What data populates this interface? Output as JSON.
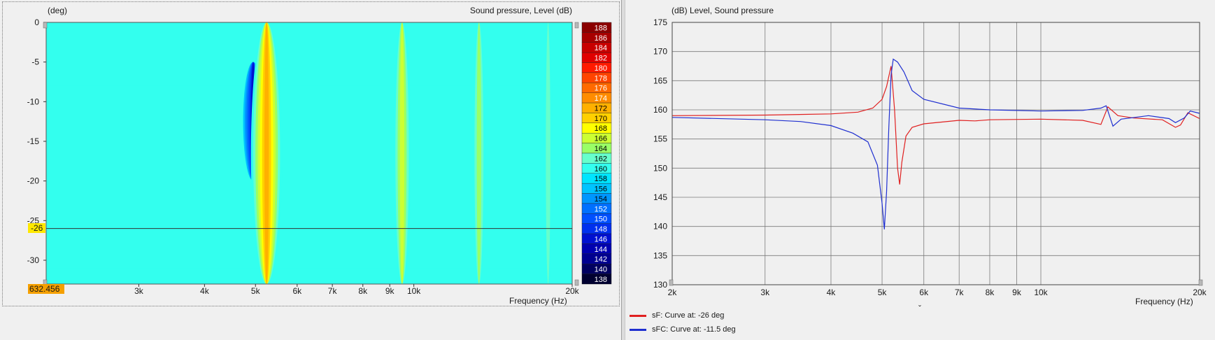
{
  "colors": {
    "series_sF": "#e02020",
    "series_sFC": "#1f2fd0",
    "cursor_bg": "#ffe800",
    "readout_bg": "#f5a000"
  },
  "left": {
    "y_unit": "(deg)",
    "z_title": "Sound pressure, Level  (dB)",
    "x_title": "Frequency  (Hz)",
    "cursor_label": "-26",
    "readout": "632.456"
  },
  "right": {
    "y_title": "(dB)  Level, Sound pressure",
    "x_title": "Frequency  (Hz)",
    "marker": "ˇ"
  },
  "legend": [
    {
      "label": "sF: Curve at: -26 deg",
      "color": "#e02020"
    },
    {
      "label": "sFC: Curve at: -11.5 deg",
      "color": "#1f2fd0"
    }
  ],
  "chart_data": [
    {
      "type": "heatmap",
      "title": "Sound pressure, Level  (dB)",
      "ylabel": "(deg)",
      "xlabel": "Frequency  (Hz)",
      "x_scale": "log",
      "xlim": [
        2000,
        20000
      ],
      "ylim": [
        -33,
        0
      ],
      "x_ticks": [
        {
          "v": 2000,
          "label": "2k"
        },
        {
          "v": 3000,
          "label": "3k"
        },
        {
          "v": 4000,
          "label": "4k"
        },
        {
          "v": 5000,
          "label": "5k"
        },
        {
          "v": 6000,
          "label": "6k"
        },
        {
          "v": 7000,
          "label": "7k"
        },
        {
          "v": 8000,
          "label": "8k"
        },
        {
          "v": 9000,
          "label": "9k"
        },
        {
          "v": 10000,
          "label": "10k"
        },
        {
          "v": 20000,
          "label": "20k"
        }
      ],
      "y_ticks": [
        0,
        -5,
        -10,
        -15,
        -20,
        -25,
        -30
      ],
      "cursor_y": -26,
      "colorbar": [
        188,
        186,
        184,
        182,
        180,
        178,
        176,
        174,
        172,
        170,
        168,
        166,
        164,
        162,
        160,
        158,
        156,
        154,
        152,
        150,
        148,
        146,
        144,
        142,
        140,
        138
      ],
      "colorbar_colors": [
        "#8b0000",
        "#a80000",
        "#c80000",
        "#e00000",
        "#ff1a00",
        "#ff4400",
        "#ff6a00",
        "#ff8c00",
        "#ffb000",
        "#ffd000",
        "#ffff00",
        "#ccff33",
        "#99ff66",
        "#66ffcc",
        "#33ffee",
        "#00e5ff",
        "#00c4ff",
        "#0096ff",
        "#0070ff",
        "#0050ff",
        "#0030ee",
        "#0010d0",
        "#0000b0",
        "#000090",
        "#000060",
        "#000030"
      ],
      "base_level": 158,
      "features": [
        {
          "f": 4950,
          "level": 146,
          "angles": [
            -20,
            -5
          ]
        },
        {
          "f": 5250,
          "level": 172,
          "angles": [
            -33,
            0
          ]
        },
        {
          "f": 9500,
          "level": 166,
          "angles": [
            -33,
            0
          ]
        },
        {
          "f": 13300,
          "level": 164,
          "angles": [
            -33,
            0
          ]
        },
        {
          "f": 18000,
          "level": 162,
          "angles": [
            -33,
            0
          ]
        }
      ],
      "bands": [
        {
          "angles": [
            -8,
            -3
          ],
          "level": 161
        },
        {
          "angles": [
            -15,
            -12
          ],
          "level": 161
        },
        {
          "angles": [
            -31,
            -27
          ],
          "level": 161
        }
      ]
    },
    {
      "type": "line",
      "title": "(dB)  Level, Sound pressure",
      "xlabel": "Frequency  (Hz)",
      "x_scale": "log",
      "xlim": [
        2000,
        20000
      ],
      "ylim": [
        130,
        175
      ],
      "x_ticks": [
        {
          "v": 2000,
          "label": "2k"
        },
        {
          "v": 3000,
          "label": "3k"
        },
        {
          "v": 4000,
          "label": "4k"
        },
        {
          "v": 5000,
          "label": "5k"
        },
        {
          "v": 6000,
          "label": "6k"
        },
        {
          "v": 7000,
          "label": "7k"
        },
        {
          "v": 8000,
          "label": "8k"
        },
        {
          "v": 9000,
          "label": "9k"
        },
        {
          "v": 10000,
          "label": "10k"
        },
        {
          "v": 20000,
          "label": "20k"
        }
      ],
      "y_ticks": [
        130,
        135,
        140,
        145,
        150,
        155,
        160,
        165,
        170,
        175
      ],
      "grid": true,
      "series": [
        {
          "name": "sF: Curve at: -26 deg",
          "color": "#e02020",
          "points": [
            [
              2000,
              159
            ],
            [
              3000,
              159.1
            ],
            [
              4000,
              159.3
            ],
            [
              4500,
              159.6
            ],
            [
              4800,
              160.3
            ],
            [
              5000,
              161.8
            ],
            [
              5100,
              164
            ],
            [
              5200,
              167.5
            ],
            [
              5280,
              160
            ],
            [
              5350,
              150
            ],
            [
              5400,
              147.2
            ],
            [
              5450,
              151
            ],
            [
              5550,
              155.5
            ],
            [
              5700,
              157
            ],
            [
              6000,
              157.6
            ],
            [
              7000,
              158.2
            ],
            [
              7500,
              158.1
            ],
            [
              8000,
              158.3
            ],
            [
              10000,
              158.4
            ],
            [
              12000,
              158.2
            ],
            [
              13000,
              157.5
            ],
            [
              13400,
              160.5
            ],
            [
              14000,
              159
            ],
            [
              15000,
              158.6
            ],
            [
              17000,
              158.3
            ],
            [
              18000,
              157
            ],
            [
              18400,
              157.4
            ],
            [
              19000,
              159.5
            ],
            [
              20000,
              158.5
            ]
          ]
        },
        {
          "name": "sFC: Curve at: -11.5 deg",
          "color": "#1f2fd0",
          "points": [
            [
              2000,
              158.7
            ],
            [
              3000,
              158.3
            ],
            [
              3500,
              158
            ],
            [
              4000,
              157.3
            ],
            [
              4400,
              156
            ],
            [
              4700,
              154.5
            ],
            [
              4900,
              150.5
            ],
            [
              5000,
              144
            ],
            [
              5050,
              139.5
            ],
            [
              5100,
              146
            ],
            [
              5150,
              157
            ],
            [
              5200,
              166
            ],
            [
              5250,
              168.7
            ],
            [
              5350,
              168.2
            ],
            [
              5500,
              166.5
            ],
            [
              5700,
              163.3
            ],
            [
              6000,
              161.8
            ],
            [
              7000,
              160.3
            ],
            [
              8000,
              160
            ],
            [
              10000,
              159.8
            ],
            [
              12000,
              159.9
            ],
            [
              13000,
              160.3
            ],
            [
              13300,
              160.7
            ],
            [
              13700,
              157.2
            ],
            [
              14200,
              158.4
            ],
            [
              16000,
              159
            ],
            [
              17500,
              158.5
            ],
            [
              18000,
              157.8
            ],
            [
              18700,
              158.6
            ],
            [
              19200,
              159.8
            ],
            [
              20000,
              159.4
            ]
          ]
        }
      ]
    }
  ]
}
